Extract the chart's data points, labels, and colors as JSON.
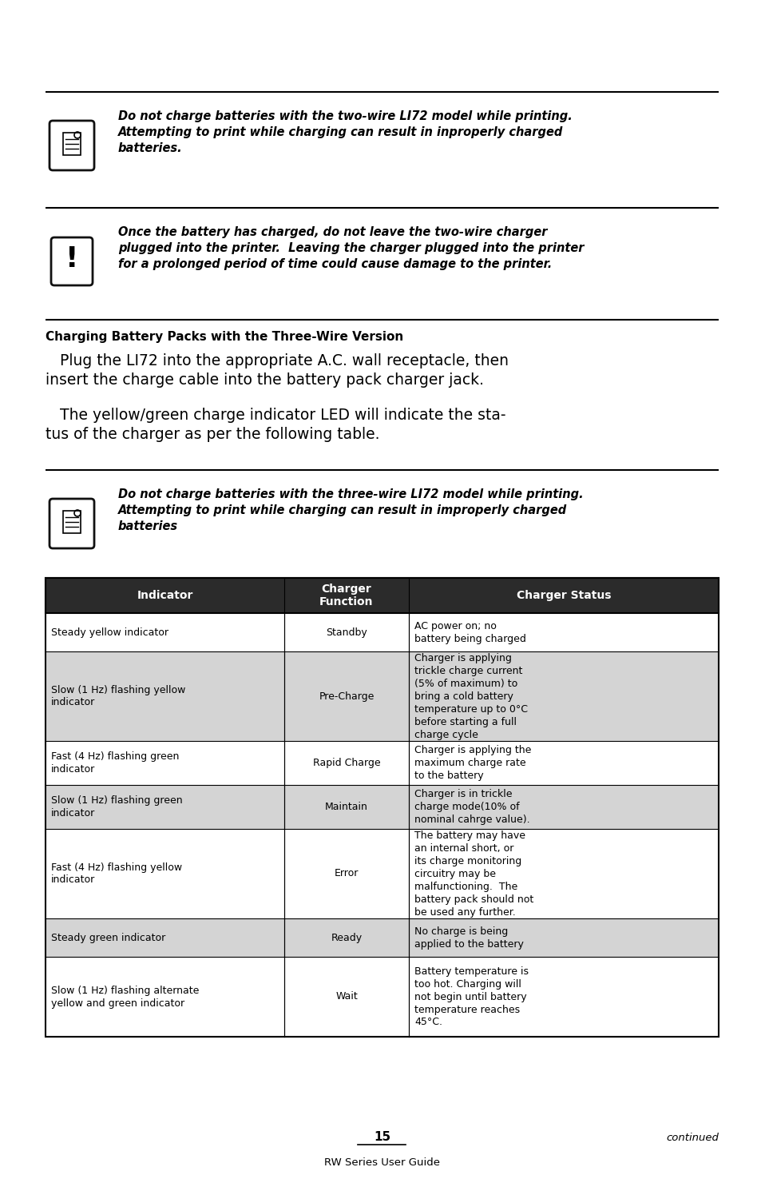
{
  "bg_color": "#ffffff",
  "warning1_text": "Do not charge batteries with the two-wire LI72 model while printing.\nAttempting to print while charging can result in inproperly charged\nbatteries.",
  "warning2_text": "Once the battery has charged, do not leave the two-wire charger\nplugged into the printer.  Leaving the charger plugged into the printer\nfor a prolonged period of time could cause damage to the printer.",
  "section_heading": "Charging Battery Packs with the Three-Wire Version",
  "body_text1": "   Plug the LI72 into the appropriate A.C. wall receptacle, then\ninsert the charge cable into the battery pack charger jack.",
  "body_text2": "   The yellow/green charge indicator LED will indicate the sta-\ntus of the charger as per the following table.",
  "warning3_text": "Do not charge batteries with the three-wire LI72 model while printing.\nAttempting to print while charging can result in improperly charged\nbatteries",
  "table_header_bg": "#2b2b2b",
  "table_header_color": "#ffffff",
  "table_alt_row_bg": "#d4d4d4",
  "table_white_row_bg": "#ffffff",
  "table_border_color": "#000000",
  "table_rows": [
    {
      "indicator": "Steady yellow indicator",
      "function": "Standby",
      "status": "AC power on; no\nbattery being charged",
      "shaded": false
    },
    {
      "indicator": "Slow (1 Hz) flashing yellow\nindicator",
      "function": "Pre-Charge",
      "status": "Charger is applying\ntrickle charge current\n(5% of maximum) to\nbring a cold battery\ntemperature up to 0°C\nbefore starting a full\ncharge cycle",
      "shaded": true
    },
    {
      "indicator": "Fast (4 Hz) flashing green\nindicator",
      "function": "Rapid Charge",
      "status": "Charger is applying the\nmaximum charge rate\nto the battery",
      "shaded": false
    },
    {
      "indicator": "Slow (1 Hz) flashing green\nindicator",
      "function": "Maintain",
      "status": "Charger is in trickle\ncharge mode(10% of\nnominal cahrge value).",
      "shaded": true
    },
    {
      "indicator": "Fast (4 Hz) flashing yellow\nindicator",
      "function": "Error",
      "status": "The battery may have\nan internal short, or\nits charge monitoring\ncircuitry may be\nmalfunctioning.  The\nbattery pack should not\nbe used any further.",
      "shaded": false
    },
    {
      "indicator": "Steady green indicator",
      "function": "Ready",
      "status": "No charge is being\napplied to the battery",
      "shaded": true
    },
    {
      "indicator": "Slow (1 Hz) flashing alternate\nyellow and green indicator",
      "function": "Wait",
      "status": "Battery temperature is\ntoo hot. Charging will\nnot begin until battery\ntemperature reaches\n45°C.",
      "shaded": false
    }
  ],
  "footer_continued": "continued",
  "footer_page": "15",
  "footer_guide": "RW Series User Guide"
}
